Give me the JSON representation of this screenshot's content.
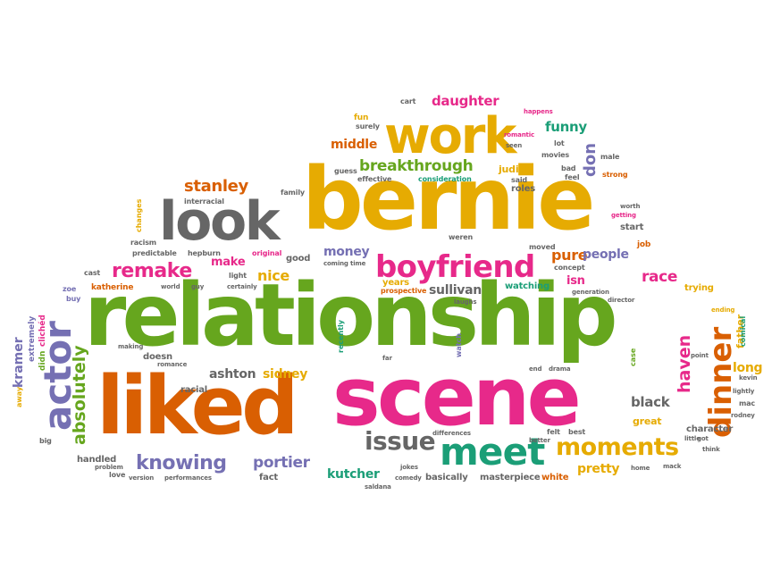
{
  "colors": {
    "green": "#66a61e",
    "orange": "#d95f02",
    "magenta": "#e7298a",
    "yellow": "#e6ab02",
    "gray": "#666666",
    "purple": "#7570b3",
    "teal": "#1b9e77",
    "brown": "#a6761d"
  },
  "words": {
    "relationship": "relationship",
    "bernie": "bernie",
    "scene": "scene",
    "liked": "liked",
    "look": "look",
    "work": "work",
    "actor": "actor",
    "boyfriend": "boyfriend",
    "meet": "meet",
    "moments": "moments",
    "dinner": "dinner",
    "issue": "issue",
    "breakthrough": "breakthrough",
    "remake": "remake",
    "knowing": "knowing",
    "stanley": "stanley",
    "absolutely": "absolutely",
    "daughter": "daughter",
    "funny": "funny",
    "middle": "middle",
    "pure": "pure",
    "people": "people",
    "race": "race",
    "money": "money",
    "nice": "nice",
    "make": "make",
    "sullivan": "sullivan",
    "ashton": "ashton",
    "sidney": "sidney",
    "portier": "portier",
    "kutcher": "kutcher",
    "pretty": "pretty",
    "black": "black",
    "haven": "haven",
    "long": "long",
    "watching": "watching",
    "isn": "isn",
    "don": "don",
    "katherine": "katherine",
    "kramer": "kramer",
    "years": "years",
    "judith": "judith",
    "great": "great",
    "character": "character",
    "basically": "basically",
    "masterpiece": "masterpiece",
    "white": "white",
    "fact": "fact",
    "racial": "racial",
    "handled": "handled",
    "father": "father",
    "roles": "roles",
    "start": "start",
    "trying": "trying",
    "doesn": "doesn",
    "fun": "fun",
    "cart": "cart",
    "surely": "surely",
    "romantic": "romantic",
    "guess": "guess",
    "effective": "effective",
    "consideration": "consideration",
    "said": "said",
    "seen": "seen",
    "movies": "movies",
    "lot": "lot",
    "happens": "happens",
    "bad": "bad",
    "feel": "feel",
    "male": "male",
    "strong": "strong",
    "family": "family",
    "interracial": "interracial",
    "changes": "changes",
    "racism": "racism",
    "predictable": "predictable",
    "hepburn": "hepburn",
    "original": "original",
    "good": "good",
    "light": "light",
    "coming": "coming",
    "time": "time",
    "weren": "weren",
    "moved": "moved",
    "concept": "concept",
    "worth": "worth",
    "getting": "getting",
    "job": "job",
    "cast": "cast",
    "zoe": "zoe",
    "buy": "buy",
    "world": "world",
    "guy": "guy",
    "certainly": "certainly",
    "prospective": "prospective",
    "laughs": "laughs",
    "generation": "generation",
    "director": "director",
    "extremely": "extremely",
    "clichd": "clichéd",
    "didn": "didn",
    "making": "making",
    "romance": "romance",
    "recently": "recently",
    "far": "far",
    "watch": "watch",
    "end": "end",
    "drama": "drama",
    "point": "point",
    "ending": "ending",
    "comical": "comical",
    "case": "case",
    "kevin": "kevin",
    "lightly": "lightly",
    "mac": "mac",
    "rodney": "rodney",
    "got": "got",
    "think": "think",
    "felt": "felt",
    "best": "best",
    "better": "better",
    "little": "little",
    "differences": "differences",
    "mack": "mack",
    "home": "home",
    "jokes": "jokes",
    "comedy": "comedy",
    "saldana": "saldana",
    "love": "love",
    "version": "version",
    "performances": "performances",
    "problem": "problem",
    "away": "away",
    "big": "big"
  }
}
